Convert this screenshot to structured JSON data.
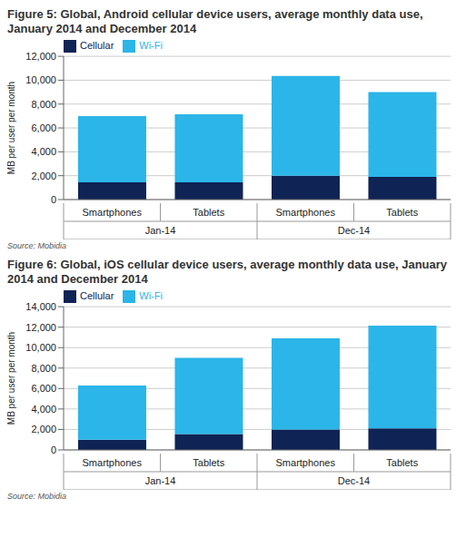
{
  "chart_data": [
    {
      "type": "bar",
      "stacked": true,
      "grid": true,
      "legend": "top-left",
      "title": "Figure 5: Global, Android cellular device users, average monthly data use, January 2014 and December 2014",
      "y_label": "MB per user per month",
      "source": "Source: Mobidia",
      "categories": [
        "Smartphones",
        "Tablets",
        "Smartphones",
        "Tablets"
      ],
      "groups": [
        "Jan-14",
        "Dec-14"
      ],
      "series": [
        {
          "name": "Cellular",
          "color": "#0f2355",
          "values": [
            1450,
            1450,
            2000,
            1900
          ]
        },
        {
          "name": "Wi-Fi",
          "color": "#2bb5e8",
          "values": [
            5550,
            5700,
            8350,
            7100
          ]
        }
      ],
      "ylim": [
        0,
        12000
      ],
      "yticks": [
        0,
        {
          "value": 2000,
          "label": "2,000"
        },
        {
          "value": 4000,
          "label": "4,000"
        },
        {
          "value": 6000,
          "label": "6,000"
        },
        {
          "value": 8000,
          "label": "8,000"
        },
        {
          "value": 10000,
          "label": "10,000"
        },
        {
          "value": 12000,
          "label": "12,000"
        }
      ]
    },
    {
      "type": "bar",
      "stacked": true,
      "grid": true,
      "legend": "top-left",
      "title": "Figure 6: Global, iOS cellular device users, average monthly data use, January 2014 and December 2014",
      "y_label": "MB per user per month",
      "source": "Source: Mobidia",
      "categories": [
        "Smartphones",
        "Tablets",
        "Smartphones",
        "Tablets"
      ],
      "groups": [
        "Jan-14",
        "Dec-14"
      ],
      "series": [
        {
          "name": "Cellular",
          "color": "#0f2355",
          "values": [
            1000,
            1550,
            2000,
            2100
          ]
        },
        {
          "name": "Wi-Fi",
          "color": "#2bb5e8",
          "values": [
            5300,
            7450,
            8900,
            10050
          ]
        }
      ],
      "ylim": [
        0,
        14000
      ],
      "yticks": [
        0,
        {
          "value": 2000,
          "label": "2,000"
        },
        {
          "value": 4000,
          "label": "4,000"
        },
        {
          "value": 6000,
          "label": "6,000"
        },
        {
          "value": 8000,
          "label": "8,000"
        },
        {
          "value": 10000,
          "label": "10,000"
        },
        {
          "value": 12000,
          "label": "12,000"
        },
        {
          "value": 14000,
          "label": "14,000"
        }
      ]
    }
  ]
}
